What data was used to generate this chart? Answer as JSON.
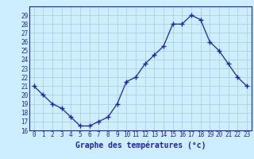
{
  "hours": [
    0,
    1,
    2,
    3,
    4,
    5,
    6,
    7,
    8,
    9,
    10,
    11,
    12,
    13,
    14,
    15,
    16,
    17,
    18,
    19,
    20,
    21,
    22,
    23
  ],
  "temps": [
    21.0,
    20.0,
    19.0,
    18.5,
    17.5,
    16.5,
    16.5,
    17.0,
    17.5,
    19.0,
    21.5,
    22.0,
    23.5,
    24.5,
    25.5,
    28.0,
    28.0,
    29.0,
    28.5,
    26.0,
    25.0,
    23.5,
    22.0,
    21.0
  ],
  "line_color": "#2222aa",
  "marker": "+",
  "marker_size": 4,
  "bg_color": "#cceeff",
  "grid_color": "#aacccc",
  "xlabel": "Graphe des températures (°c)",
  "xlabel_color": "#2222aa",
  "tick_label_color": "#2222aa",
  "ylim": [
    16,
    30
  ],
  "xlim": [
    -0.5,
    23.5
  ],
  "yticks": [
    16,
    17,
    18,
    19,
    20,
    21,
    22,
    23,
    24,
    25,
    26,
    27,
    28,
    29
  ],
  "xticks": [
    0,
    1,
    2,
    3,
    4,
    5,
    6,
    7,
    8,
    9,
    10,
    11,
    12,
    13,
    14,
    15,
    16,
    17,
    18,
    19,
    20,
    21,
    22,
    23
  ],
  "xtick_labels": [
    "0",
    "1",
    "2",
    "3",
    "4",
    "5",
    "6",
    "7",
    "8",
    "9",
    "10",
    "11",
    "12",
    "13",
    "14",
    "15",
    "16",
    "17",
    "18",
    "19",
    "20",
    "21",
    "22",
    "23"
  ]
}
